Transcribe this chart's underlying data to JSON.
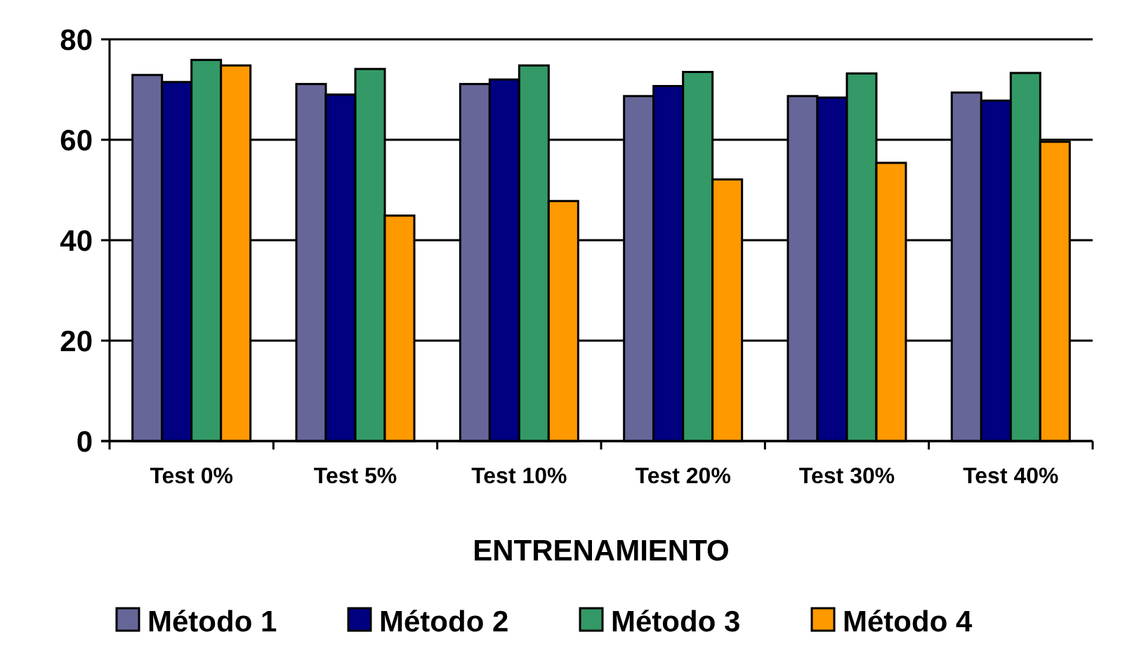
{
  "chart_data": {
    "type": "bar",
    "xlabel": "ENTRENAMIENTO",
    "categories": [
      "Test 0%",
      "Test 5%",
      "Test 10%",
      "Test 20%",
      "Test 30%",
      "Test 40%"
    ],
    "series": [
      {
        "name": "Método 1",
        "color": "#666699",
        "values": [
          72.9,
          71.1,
          71.1,
          68.7,
          68.7,
          69.4
        ]
      },
      {
        "name": "Método 2",
        "color": "#000080",
        "values": [
          71.5,
          69.0,
          72.0,
          70.7,
          68.4,
          67.8
        ]
      },
      {
        "name": "Método 3",
        "color": "#339966",
        "values": [
          75.9,
          74.1,
          74.8,
          73.5,
          73.2,
          73.3
        ]
      },
      {
        "name": "Método 4",
        "color": "#ff9900",
        "values": [
          74.8,
          44.9,
          47.8,
          52.1,
          55.4,
          59.6
        ]
      }
    ],
    "ylim": [
      0,
      80
    ],
    "yticks": [
      0,
      20,
      40,
      60,
      80
    ],
    "grid": "y",
    "legend": "bottom"
  }
}
